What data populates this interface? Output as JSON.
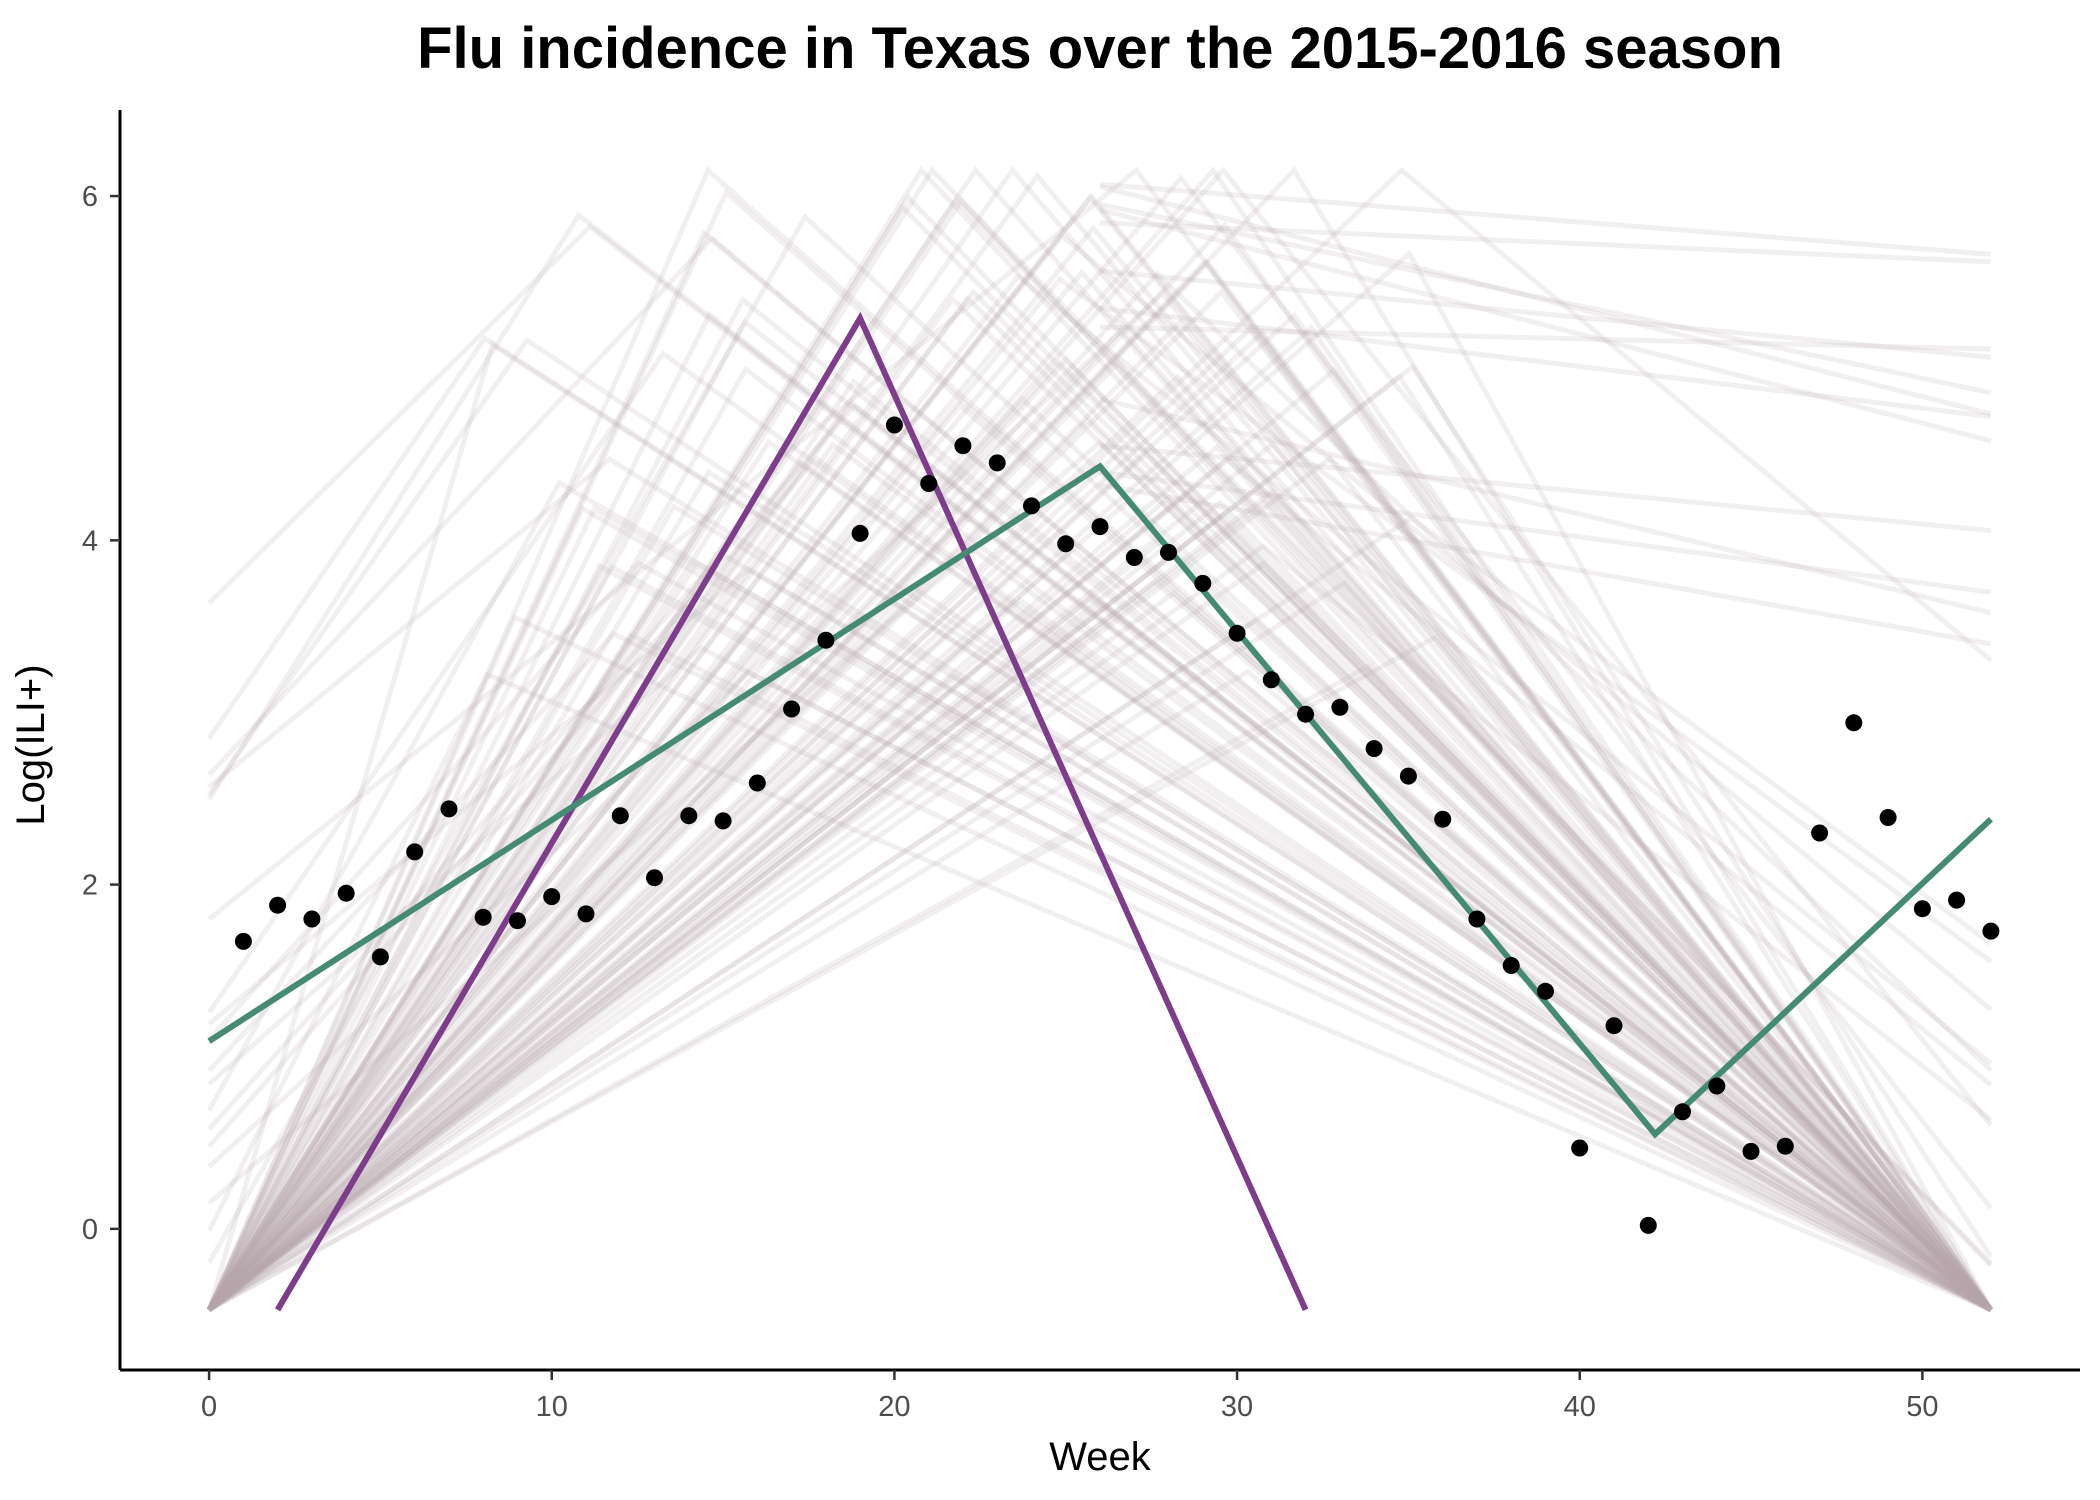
{
  "chart_data": {
    "type": "line",
    "title": "Flu incidence in Texas over the 2015-2016 season",
    "xlabel": "Week",
    "ylabel": "Log(ILI+)",
    "xlim": [
      -2.6,
      54.6
    ],
    "ylim": [
      -0.82,
      6.5
    ],
    "x_ticks": [
      0,
      10,
      20,
      30,
      40,
      50
    ],
    "y_ticks": [
      0,
      2,
      4,
      6
    ],
    "grid": false,
    "legend": "none",
    "colors": {
      "observed": "#000000",
      "fit_purple": "#7e3d8b",
      "fit_green": "#458b74",
      "samples": "#b8a8ae"
    },
    "series": [
      {
        "type": "scatter",
        "x": [
          1,
          2,
          3,
          4,
          5,
          6,
          7,
          8,
          9,
          10,
          11,
          12,
          13,
          14,
          15,
          16,
          17,
          18,
          19,
          20,
          21,
          22,
          23,
          24,
          25,
          26,
          27,
          28,
          29,
          30,
          31,
          32,
          33,
          34,
          35,
          36,
          37,
          38,
          39,
          40,
          41,
          42,
          43,
          44,
          45,
          46,
          47,
          48,
          49,
          50,
          51,
          52
        ],
        "values": [
          1.67,
          1.88,
          1.8,
          1.95,
          1.58,
          2.19,
          2.44,
          1.81,
          1.79,
          1.93,
          1.83,
          2.4,
          2.04,
          2.4,
          2.37,
          2.59,
          3.02,
          3.42,
          4.04,
          4.67,
          4.33,
          4.55,
          4.45,
          4.2,
          3.98,
          4.08,
          3.9,
          3.93,
          3.75,
          3.46,
          3.19,
          2.99,
          3.03,
          2.79,
          2.63,
          2.38,
          1.8,
          1.53,
          1.38,
          0.47,
          1.18,
          0.02,
          0.68,
          0.83,
          0.45,
          0.48,
          2.3,
          2.94,
          2.39,
          1.86,
          1.91,
          1.73
        ]
      },
      {
        "type": "line",
        "x": [
          2,
          19,
          32
        ],
        "values": [
          -0.47,
          5.29,
          -0.47
        ]
      },
      {
        "type": "line",
        "x": [
          0,
          26,
          42.2,
          52
        ],
        "values": [
          1.09,
          4.43,
          0.55,
          2.38
        ]
      }
    ],
    "background_samples_count": 130
  }
}
